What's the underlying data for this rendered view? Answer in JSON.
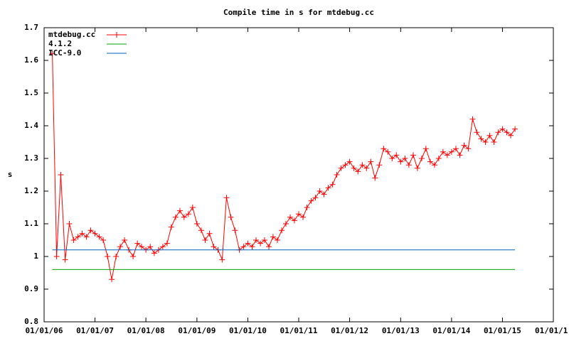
{
  "chart_data": {
    "type": "line",
    "title": "Compile time in s for mtdebug.cc",
    "y_label": "s",
    "xlim": [
      "2006-01-01",
      "2016-01-01"
    ],
    "xticks": [
      {
        "value": "2006-01-01",
        "label": "01/01/06"
      },
      {
        "value": "2007-01-01",
        "label": "01/01/07"
      },
      {
        "value": "2008-01-01",
        "label": "01/01/08"
      },
      {
        "value": "2009-01-01",
        "label": "01/01/09"
      },
      {
        "value": "2010-01-01",
        "label": "01/01/10"
      },
      {
        "value": "2011-01-01",
        "label": "01/01/11"
      },
      {
        "value": "2012-01-01",
        "label": "01/01/12"
      },
      {
        "value": "2013-01-01",
        "label": "01/01/13"
      },
      {
        "value": "2014-01-01",
        "label": "01/01/14"
      },
      {
        "value": "2015-01-01",
        "label": "01/01/15"
      },
      {
        "value": "2016-01-01",
        "label": "01/01/1"
      }
    ],
    "ylim": [
      0.8,
      1.7
    ],
    "yticks": [
      0.8,
      0.9,
      1,
      1.1,
      1.2,
      1.3,
      1.4,
      1.5,
      1.6,
      1.7
    ],
    "legend": "top-left",
    "series": [
      {
        "name": "mtdebug.cc",
        "color": "#ff0000",
        "markers": true,
        "x": [
          "2006-03-01",
          "2006-04-01",
          "2006-05-01",
          "2006-06-01",
          "2006-07-01",
          "2006-08-01",
          "2006-09-01",
          "2006-10-01",
          "2006-11-01",
          "2006-12-01",
          "2007-01-01",
          "2007-02-01",
          "2007-03-01",
          "2007-04-01",
          "2007-05-01",
          "2007-06-01",
          "2007-07-01",
          "2007-08-01",
          "2007-09-01",
          "2007-10-01",
          "2007-11-01",
          "2007-12-01",
          "2008-01-01",
          "2008-02-01",
          "2008-03-01",
          "2008-04-01",
          "2008-05-01",
          "2008-06-01",
          "2008-07-01",
          "2008-08-01",
          "2008-09-01",
          "2008-10-01",
          "2008-11-01",
          "2008-12-01",
          "2009-01-01",
          "2009-02-01",
          "2009-03-01",
          "2009-04-01",
          "2009-05-01",
          "2009-06-01",
          "2009-07-01",
          "2009-08-01",
          "2009-09-01",
          "2009-10-01",
          "2009-11-01",
          "2009-12-01",
          "2010-01-01",
          "2010-02-01",
          "2010-03-01",
          "2010-04-01",
          "2010-05-01",
          "2010-06-01",
          "2010-07-01",
          "2010-08-01",
          "2010-09-01",
          "2010-10-01",
          "2010-11-01",
          "2010-12-01",
          "2011-01-01",
          "2011-02-01",
          "2011-03-01",
          "2011-04-01",
          "2011-05-01",
          "2011-06-01",
          "2011-07-01",
          "2011-08-01",
          "2011-09-01",
          "2011-10-01",
          "2011-11-01",
          "2011-12-01",
          "2012-01-01",
          "2012-02-01",
          "2012-03-01",
          "2012-04-01",
          "2012-05-01",
          "2012-06-01",
          "2012-07-01",
          "2012-08-01",
          "2012-09-01",
          "2012-10-01",
          "2012-11-01",
          "2012-12-01",
          "2013-01-01",
          "2013-02-01",
          "2013-03-01",
          "2013-04-01",
          "2013-05-01",
          "2013-06-01",
          "2013-07-01",
          "2013-08-01",
          "2013-09-01",
          "2013-10-01",
          "2013-11-01",
          "2013-12-01",
          "2014-01-01",
          "2014-02-01",
          "2014-03-01",
          "2014-04-01",
          "2014-05-01",
          "2014-06-01",
          "2014-07-01",
          "2014-08-01",
          "2014-09-01",
          "2014-10-01",
          "2014-11-01",
          "2014-12-01",
          "2015-01-01",
          "2015-02-01",
          "2015-03-01",
          "2015-04-01"
        ],
        "values": [
          1.62,
          1.0,
          1.25,
          0.99,
          1.1,
          1.05,
          1.06,
          1.07,
          1.06,
          1.08,
          1.07,
          1.06,
          1.05,
          1.0,
          0.93,
          1.0,
          1.03,
          1.05,
          1.02,
          1.0,
          1.04,
          1.03,
          1.02,
          1.03,
          1.01,
          1.02,
          1.03,
          1.04,
          1.09,
          1.12,
          1.14,
          1.12,
          1.13,
          1.15,
          1.1,
          1.08,
          1.05,
          1.07,
          1.03,
          1.02,
          0.99,
          1.18,
          1.12,
          1.08,
          1.02,
          1.03,
          1.04,
          1.03,
          1.05,
          1.04,
          1.05,
          1.03,
          1.06,
          1.05,
          1.08,
          1.1,
          1.12,
          1.11,
          1.13,
          1.12,
          1.15,
          1.17,
          1.18,
          1.2,
          1.19,
          1.21,
          1.22,
          1.25,
          1.27,
          1.28,
          1.29,
          1.27,
          1.26,
          1.28,
          1.27,
          1.29,
          1.24,
          1.28,
          1.33,
          1.32,
          1.3,
          1.31,
          1.29,
          1.3,
          1.28,
          1.31,
          1.27,
          1.3,
          1.33,
          1.29,
          1.28,
          1.3,
          1.32,
          1.31,
          1.32,
          1.33,
          1.31,
          1.34,
          1.33,
          1.42,
          1.38,
          1.36,
          1.35,
          1.37,
          1.35,
          1.38,
          1.39,
          1.38,
          1.37,
          1.39
        ]
      },
      {
        "name": "4.1.2",
        "color": "#00a000",
        "x": [
          "2006-03-01",
          "2015-04-01"
        ],
        "values": [
          0.96,
          0.96
        ]
      },
      {
        "name": "ICC-9.0",
        "color": "#0060c0",
        "x": [
          "2006-03-01",
          "2015-04-01"
        ],
        "values": [
          1.02,
          1.02
        ]
      }
    ]
  }
}
